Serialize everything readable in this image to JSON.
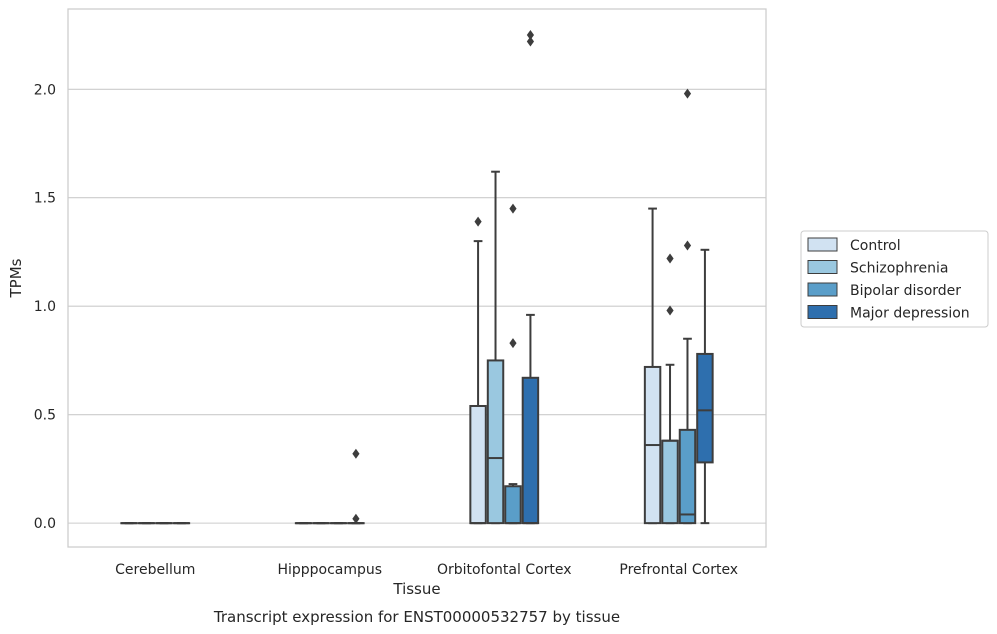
{
  "chart_data": {
    "type": "box",
    "title": "",
    "caption": "Transcript expression for ENST00000532757 by tissue",
    "xlabel": "Tissue",
    "ylabel": "TPMs",
    "ylim": [
      -0.11,
      2.37
    ],
    "yticks": [
      0.0,
      0.5,
      1.0,
      1.5,
      2.0
    ],
    "ytick_labels": [
      "0.0",
      "0.5",
      "1.0",
      "1.5",
      "2.0"
    ],
    "grid": "horizontal",
    "legend_position": "right",
    "categories": [
      "Cerebellum",
      "Hipppocampus",
      "Orbitofontal Cortex",
      "Prefrontal Cortex"
    ],
    "series": [
      {
        "name": "Control",
        "color": "#d1e2f2",
        "boxes": [
          {
            "q1": 0,
            "median": 0,
            "q3": 0,
            "whisker_low": 0,
            "whisker_high": 0,
            "outliers": []
          },
          {
            "q1": 0,
            "median": 0,
            "q3": 0,
            "whisker_low": 0,
            "whisker_high": 0,
            "outliers": []
          },
          {
            "q1": 0,
            "median": 0,
            "q3": 0.54,
            "whisker_low": 0,
            "whisker_high": 1.3,
            "outliers": [
              1.39
            ]
          },
          {
            "q1": 0,
            "median": 0.36,
            "q3": 0.72,
            "whisker_low": 0,
            "whisker_high": 1.45,
            "outliers": []
          }
        ]
      },
      {
        "name": "Schizophrenia",
        "color": "#9ac8e0",
        "boxes": [
          {
            "q1": 0,
            "median": 0,
            "q3": 0,
            "whisker_low": 0,
            "whisker_high": 0,
            "outliers": []
          },
          {
            "q1": 0,
            "median": 0,
            "q3": 0,
            "whisker_low": 0,
            "whisker_high": 0,
            "outliers": []
          },
          {
            "q1": 0,
            "median": 0.3,
            "q3": 0.75,
            "whisker_low": 0,
            "whisker_high": 1.62,
            "outliers": []
          },
          {
            "q1": 0,
            "median": 0.38,
            "q3": 0.38,
            "whisker_low": 0,
            "whisker_high": 0.73,
            "outliers": [
              0.98,
              1.22
            ]
          }
        ]
      },
      {
        "name": "Bipolar disorder",
        "color": "#5a9ec9",
        "boxes": [
          {
            "q1": 0,
            "median": 0,
            "q3": 0,
            "whisker_low": 0,
            "whisker_high": 0,
            "outliers": []
          },
          {
            "q1": 0,
            "median": 0,
            "q3": 0,
            "whisker_low": 0,
            "whisker_high": 0,
            "outliers": []
          },
          {
            "q1": 0,
            "median": 0,
            "q3": 0.17,
            "whisker_low": 0,
            "whisker_high": 0.18,
            "outliers": [
              0.83,
              1.45
            ]
          },
          {
            "q1": 0,
            "median": 0.04,
            "q3": 0.43,
            "whisker_low": 0,
            "whisker_high": 0.85,
            "outliers": [
              1.28,
              1.98
            ]
          }
        ]
      },
      {
        "name": "Major depression",
        "color": "#2e6fae",
        "boxes": [
          {
            "q1": 0,
            "median": 0,
            "q3": 0,
            "whisker_low": 0,
            "whisker_high": 0,
            "outliers": []
          },
          {
            "q1": 0,
            "median": 0,
            "q3": 0,
            "whisker_low": 0,
            "whisker_high": 0,
            "outliers": [
              0.02,
              0.32
            ]
          },
          {
            "q1": 0,
            "median": 0,
            "q3": 0.67,
            "whisker_low": 0,
            "whisker_high": 0.96,
            "outliers": [
              2.22,
              2.25
            ]
          },
          {
            "q1": 0.28,
            "median": 0.52,
            "q3": 0.78,
            "whisker_low": 0,
            "whisker_high": 1.26,
            "outliers": []
          }
        ]
      }
    ]
  }
}
